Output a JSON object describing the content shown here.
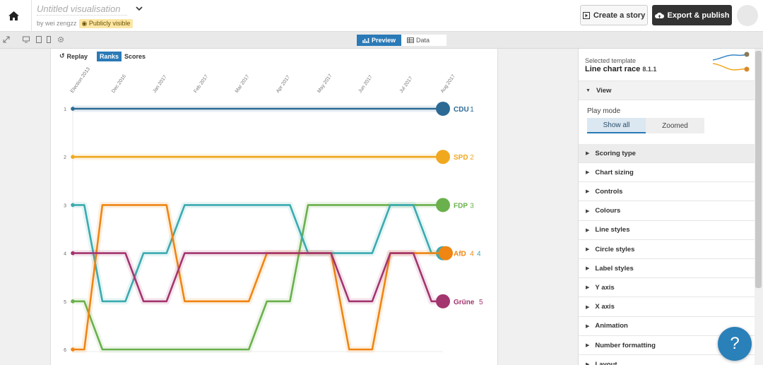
{
  "header": {
    "title": "Untitled visualisation",
    "byline": "by wei zengzz",
    "visibility": "Publicly visible",
    "create_story": "Create a story",
    "export_publish": "Export & publish"
  },
  "toolbar": {
    "tab_preview": "Preview",
    "tab_data": "Data"
  },
  "controls": {
    "replay": "Replay",
    "ranks": "Ranks",
    "scores": "Scores"
  },
  "chart_data": {
    "type": "line",
    "title": "",
    "x": [
      "Election 2013",
      "Dec 2016",
      "Jan 2017",
      "Feb 2017",
      "Mar 2017",
      "Apr 2017",
      "May 2017",
      "Jun 2017",
      "Jul 2017",
      "Aug 2017"
    ],
    "y_ticks": [
      1,
      2,
      3,
      4,
      5,
      6
    ],
    "ylim": [
      1,
      6
    ],
    "y_inverted": true,
    "series": [
      {
        "name": "CDU",
        "color": "#2c6a94",
        "values": [
          1,
          1,
          1,
          1,
          1,
          1,
          1,
          1,
          1,
          1
        ],
        "end_label": "CDU",
        "end_value": "1"
      },
      {
        "name": "SPD",
        "color": "#f0a81e",
        "values": [
          2,
          2,
          2,
          2,
          2,
          2,
          2,
          2,
          2,
          2
        ],
        "end_label": "SPD",
        "end_value": "2"
      },
      {
        "name": "FDP",
        "color": "#6ab04c",
        "values": [
          5,
          6,
          6,
          6,
          6,
          5,
          3,
          3,
          3,
          3
        ],
        "end_label": "FDP",
        "end_value": "3"
      },
      {
        "name": "",
        "color": "#3aaab0",
        "values": [
          3,
          5,
          4,
          3,
          3,
          3,
          4,
          4,
          3,
          4
        ],
        "end_label": "",
        "end_value": "4"
      },
      {
        "name": "AfD",
        "color": "#ef8512",
        "values": [
          6,
          3,
          3,
          5,
          5,
          4,
          4,
          6,
          4,
          4
        ],
        "end_label": "AfD",
        "end_value": "4"
      },
      {
        "name": "Grüne",
        "color": "#a3356f",
        "values": [
          4,
          4,
          5,
          4,
          4,
          4,
          4,
          5,
          4,
          5
        ],
        "end_label": "Grüne",
        "end_value": "5"
      }
    ]
  },
  "sidebar": {
    "selected_template_label": "Selected template",
    "template_name": "Line chart race",
    "template_version": "8.1.1",
    "view": {
      "label": "View",
      "play_mode_label": "Play mode",
      "show_all": "Show all",
      "zoomed": "Zoomed"
    },
    "sections": [
      "Scoring type",
      "Chart sizing",
      "Controls",
      "Colours",
      "Line styles",
      "Circle styles",
      "Label styles",
      "Y axis",
      "X axis",
      "Animation",
      "Number formatting",
      "Layout"
    ]
  },
  "help": "?"
}
